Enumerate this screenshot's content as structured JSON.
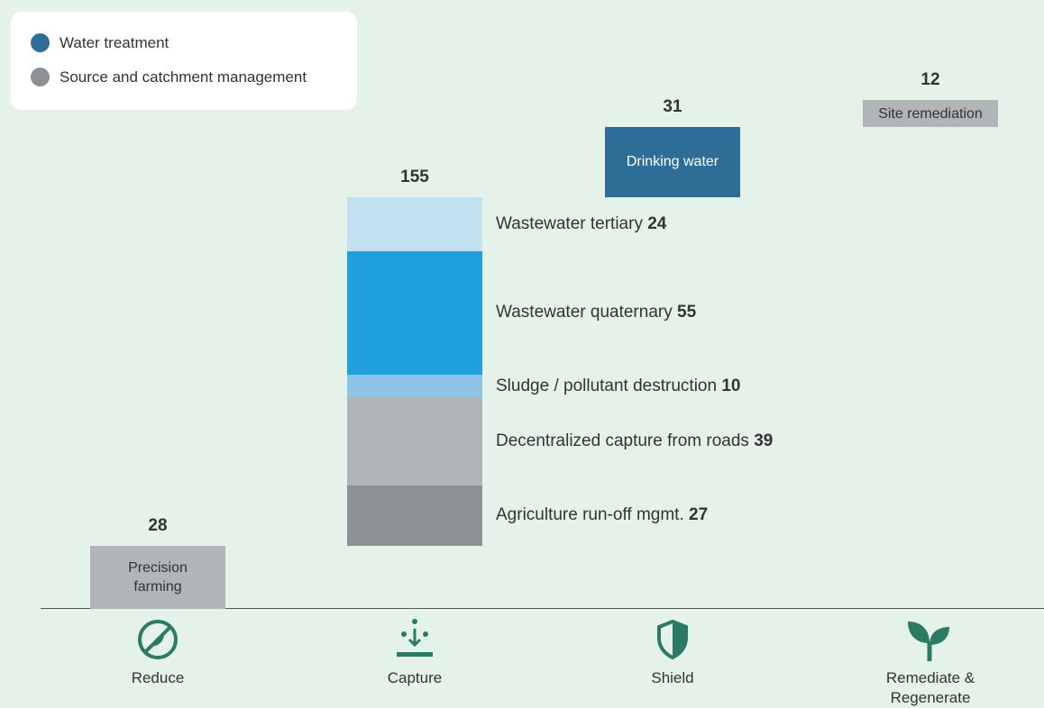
{
  "chart_data": {
    "type": "waterfall",
    "legend": [
      {
        "name": "Water treatment",
        "color": "#2e6e96"
      },
      {
        "name": "Source and catchment management",
        "color": "#8c9193"
      }
    ],
    "categories": [
      "Reduce",
      "Capture",
      "Shield",
      "Remediate & Regenerate"
    ],
    "totals": [
      28,
      155,
      31,
      12
    ],
    "segments": [
      [
        {
          "name": "Precision farming",
          "value": 28,
          "color": "#b0b5b7"
        }
      ],
      [
        {
          "name": "Agriculture run-off mgmt.",
          "value": 27,
          "color": "#8c9193"
        },
        {
          "name": "Decentralized capture from roads",
          "value": 39,
          "color": "#b0b5b7"
        },
        {
          "name": "Sludge / pollutant destruction",
          "value": 10,
          "color": "#8ec3e8"
        },
        {
          "name": "Wastewater quaternary",
          "value": 55,
          "color": "#1fa0dc"
        },
        {
          "name": "Wastewater tertiary",
          "value": 24,
          "color": "#c2e1ef"
        }
      ],
      [
        {
          "name": "Drinking water",
          "value": 31,
          "color": "#2e6e96"
        }
      ],
      [
        {
          "name": "Site remediation",
          "value": 12,
          "color": "#b0b5b7"
        }
      ]
    ]
  }
}
